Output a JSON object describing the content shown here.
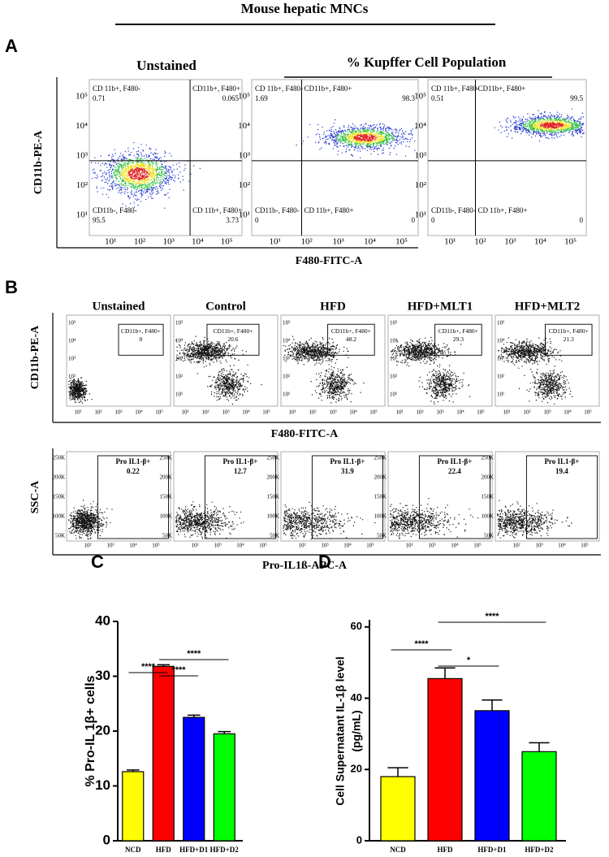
{
  "header": {
    "title": "Mouse hepatic MNCs"
  },
  "panel_a": {
    "letter": "A",
    "titles": [
      "Unstained",
      "% Kupffer Cell Population"
    ],
    "y_label": "CD11b-PE-A",
    "x_label": "F480-FITC-A",
    "ticks": [
      "10¹",
      "10²",
      "10³",
      "10⁴",
      "10⁵"
    ],
    "plots": [
      {
        "quadrants": [
          {
            "label": "CD 11b+, F480-",
            "value": 0.71
          },
          {
            "label": "CD11b+, F480+",
            "value": 0.065
          },
          {
            "label": "CD11b-, F480-",
            "value": 95.5
          },
          {
            "label": "CD 11b+, F480+",
            "value": 3.73
          }
        ]
      },
      {
        "quadrants": [
          {
            "label": "CD 11b+, F480-",
            "value": 1.69
          },
          {
            "label": "CD11b+, F480+",
            "value": 98.3
          },
          {
            "label": "CD11b-, F480-",
            "value": 0
          },
          {
            "label": "CD 11b+, F480+",
            "value": 0
          }
        ]
      },
      {
        "quadrants": [
          {
            "label": "CD 11b+, F480-",
            "value": 0.51
          },
          {
            "label": "CD11b+, F480+",
            "value": 99.5
          },
          {
            "label": "CD11b-, F480-",
            "value": 0
          },
          {
            "label": "CD 11b+, F480+",
            "value": 0
          }
        ]
      }
    ]
  },
  "panel_b": {
    "letter": "B",
    "titles": [
      "Unstained",
      "Control",
      "HFD",
      "HFD+MLT1",
      "HFD+MLT2"
    ],
    "top": {
      "y_label": "CD11b-PE-A",
      "x_label": "F480-FITC-A",
      "gate_label": "CD11b+, F480+",
      "values": [
        0,
        20.6,
        48.2,
        29.3,
        21.3
      ],
      "yticks": [
        "10⁵",
        "10⁴",
        "10³",
        "10²",
        "10¹"
      ],
      "xticks": [
        "10¹",
        "10²",
        "10³",
        "10⁴",
        "10⁵"
      ]
    },
    "bottom": {
      "y_label": "SSC-A",
      "x_label": "Pro-IL1ß-APC-A",
      "gate_label": "Pro IL1-β+",
      "values": [
        0.22,
        12.7,
        31.9,
        22.4,
        19.4
      ],
      "yticks": [
        "250K",
        "200K",
        "150K",
        "100K",
        "50K"
      ],
      "xticks": [
        "10²",
        "10³",
        "10⁴",
        "10⁵"
      ]
    }
  },
  "chart_data": [
    {
      "type": "bar",
      "letter": "C",
      "y_label": [
        "% Pro-IL 1β+ cells"
      ],
      "categories": [
        "NCD",
        "HFD",
        "HFD+D1",
        "HFD+D2"
      ],
      "values": [
        12.6,
        31.8,
        22.5,
        19.5
      ],
      "errors": [
        0.3,
        0.3,
        0.4,
        0.4
      ],
      "colors": [
        "#ffff00",
        "#ff0000",
        "#0000ff",
        "#00ff00"
      ],
      "ylim": [
        0,
        40
      ],
      "yticks": [
        0,
        10,
        20,
        30,
        40
      ],
      "significance": [
        "****",
        "****",
        "****"
      ]
    },
    {
      "type": "bar",
      "letter": "D",
      "y_label": [
        "Cell Supernatant IL-1β level",
        "(pg/mL)"
      ],
      "categories": [
        "NCD",
        "HFD",
        "HFD+D1",
        "HFD+D2"
      ],
      "values": [
        18,
        45.5,
        36.5,
        25
      ],
      "errors": [
        2.5,
        3,
        3,
        2.5
      ],
      "colors": [
        "#ffff00",
        "#ff0000",
        "#0000ff",
        "#00ff00"
      ],
      "ylim": [
        0,
        62
      ],
      "yticks": [
        0,
        20,
        40,
        60
      ],
      "significance": [
        "****",
        "*",
        "****"
      ]
    }
  ]
}
